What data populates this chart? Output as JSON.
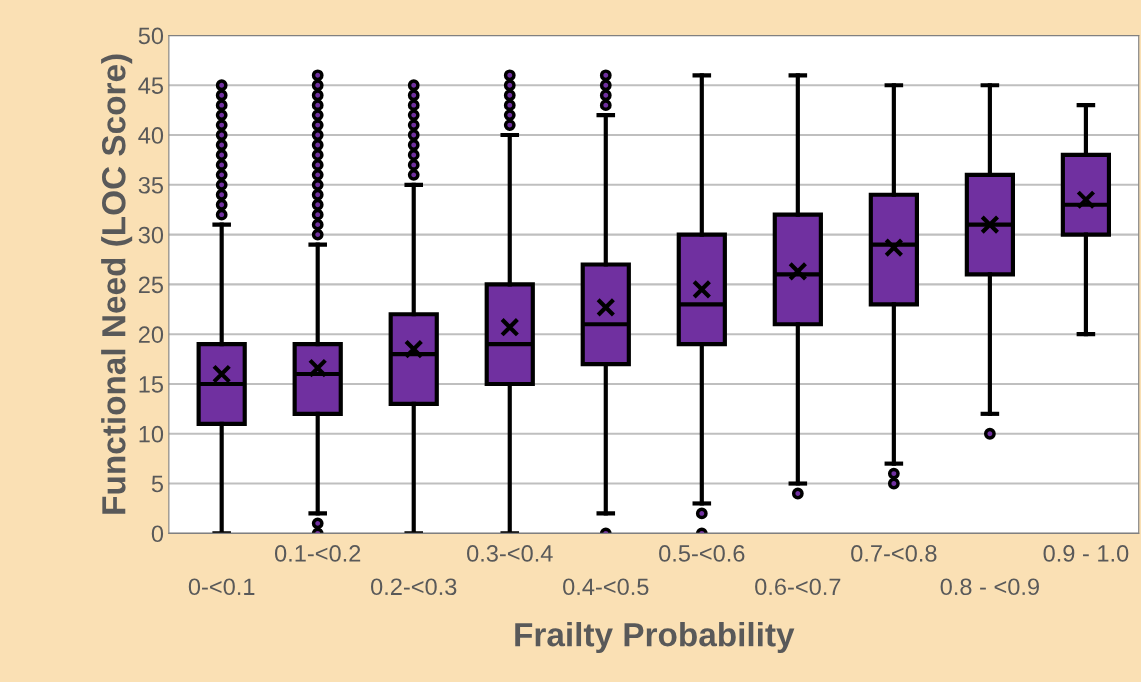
{
  "chart_data": {
    "type": "box",
    "xlabel": "Frailty Probability",
    "ylabel": "Functional Need (LOC Score)",
    "categories": [
      "0-<0.1",
      "0.1-<0.2",
      "0.2-<0.3",
      "0.3-<0.4",
      "0.4-<0.5",
      "0.5-<0.6",
      "0.6-<0.7",
      "0.7-<0.8",
      "0.8 - <0.9",
      "0.9 - 1.0"
    ],
    "series": [
      {
        "color": "#7030a0",
        "boxes": [
          {
            "low": 0,
            "q1": 11,
            "median": 15,
            "q3": 19,
            "high": 31,
            "mean": 16,
            "outliers": [
              32,
              33,
              34,
              35,
              36,
              37,
              38,
              39,
              40,
              41,
              42,
              43,
              44,
              45
            ]
          },
          {
            "low": 2,
            "q1": 12,
            "median": 16,
            "q3": 19,
            "high": 29,
            "mean": 16.6,
            "outliers": [
              0,
              1,
              30,
              31,
              32,
              33,
              34,
              35,
              36,
              37,
              38,
              39,
              40,
              41,
              42,
              43,
              44,
              45,
              46
            ]
          },
          {
            "low": 0,
            "q1": 13,
            "median": 18,
            "q3": 22,
            "high": 35,
            "mean": 18.5,
            "outliers": [
              36,
              37,
              38,
              39,
              40,
              41,
              42,
              43,
              44,
              45
            ]
          },
          {
            "low": 0,
            "q1": 15,
            "median": 19,
            "q3": 25,
            "high": 40,
            "mean": 20.7,
            "outliers": [
              41,
              42,
              43,
              44,
              45,
              46
            ]
          },
          {
            "low": 2,
            "q1": 17,
            "median": 21,
            "q3": 27,
            "high": 42,
            "mean": 22.7,
            "outliers": [
              0,
              43,
              44,
              45,
              46
            ]
          },
          {
            "low": 3,
            "q1": 19,
            "median": 23,
            "q3": 30,
            "high": 46,
            "mean": 24.5,
            "outliers": [
              0,
              2
            ]
          },
          {
            "low": 5,
            "q1": 21,
            "median": 26,
            "q3": 32,
            "high": 46,
            "mean": 26.3,
            "outliers": [
              4
            ]
          },
          {
            "low": 7,
            "q1": 23,
            "median": 29,
            "q3": 34,
            "high": 45,
            "mean": 28.7,
            "outliers": [
              5,
              6
            ]
          },
          {
            "low": 12,
            "q1": 26,
            "median": 31,
            "q3": 36,
            "high": 45,
            "mean": 31,
            "outliers": [
              10
            ]
          },
          {
            "low": 20,
            "q1": 30,
            "median": 33,
            "q3": 38,
            "high": 43,
            "mean": 33.5
          }
        ]
      }
    ],
    "ylim": [
      0,
      50
    ],
    "yticks": [
      0,
      5,
      10,
      15,
      20,
      25,
      30,
      35,
      40,
      45,
      50
    ],
    "grid": "y"
  }
}
